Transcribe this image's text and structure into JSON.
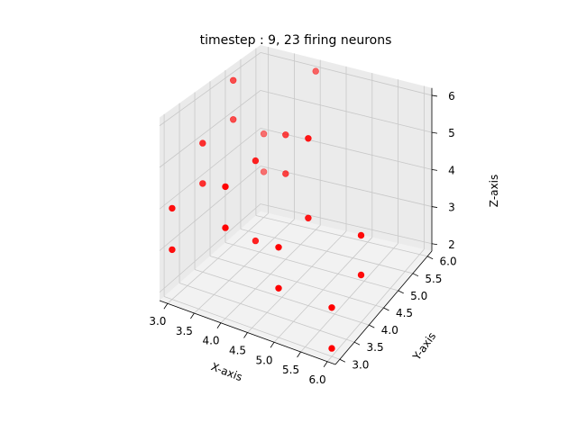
{
  "chart_data": {
    "type": "scatter",
    "projection": "3d",
    "title": "timestep : 9, 23 firing neurons",
    "xlabel": "X-axis",
    "ylabel": "Y-axis",
    "zlabel": "Z-axis",
    "xlim": [
      2.85,
      6.15
    ],
    "ylim": [
      2.85,
      6.15
    ],
    "zlim": [
      1.8,
      6.2
    ],
    "xticks": [
      "3.0",
      "3.5",
      "4.0",
      "4.5",
      "5.0",
      "5.5",
      "6.0"
    ],
    "yticks": [
      "3.0",
      "3.5",
      "4.0",
      "4.5",
      "5.0",
      "5.5",
      "6.0"
    ],
    "zticks": [
      "2",
      "3",
      "4",
      "5",
      "6"
    ],
    "grid": true,
    "marker_color": "#ff0000",
    "series": [
      {
        "x": [
          3,
          3,
          3,
          3,
          3,
          3,
          3,
          3,
          4,
          4,
          4,
          4,
          4,
          4,
          5,
          5,
          5,
          5,
          6,
          6,
          6,
          6,
          4
        ],
        "y": [
          3,
          3,
          4,
          4,
          5,
          5,
          6,
          6,
          3,
          3,
          4,
          4,
          5,
          5,
          3,
          3,
          4,
          4,
          3,
          3,
          4,
          4,
          6
        ],
        "z": [
          4,
          3,
          5,
          4,
          6,
          5,
          4,
          3,
          5,
          4,
          3,
          5,
          5,
          4,
          4,
          3,
          4,
          6,
          2,
          3,
          3,
          4,
          6
        ]
      }
    ]
  }
}
